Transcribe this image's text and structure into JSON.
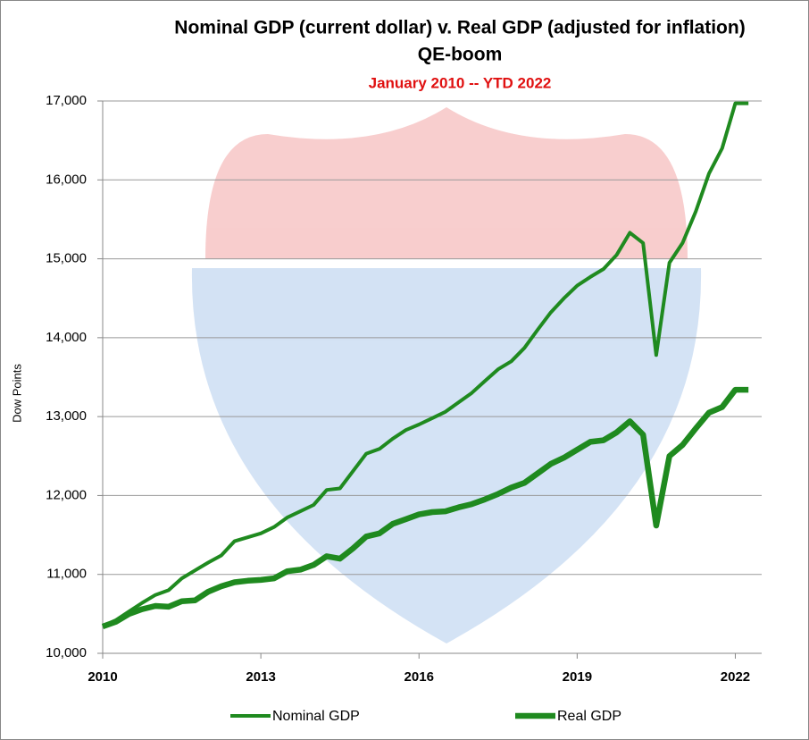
{
  "chart_data": {
    "type": "line",
    "title": "Nominal GDP (current dollar) v. Real GDP (adjusted for inflation)",
    "title2": "QE-boom",
    "subtitle": "January 2010 -- YTD 2022",
    "y_label": "Dow Points",
    "x": [
      2010,
      2010.25,
      2010.5,
      2010.75,
      2011,
      2011.25,
      2011.5,
      2011.75,
      2012,
      2012.25,
      2012.5,
      2012.75,
      2013,
      2013.25,
      2013.5,
      2013.75,
      2014,
      2014.25,
      2014.5,
      2014.75,
      2015,
      2015.25,
      2015.5,
      2015.75,
      2016,
      2016.25,
      2016.5,
      2016.75,
      2017,
      2017.25,
      2017.5,
      2017.75,
      2018,
      2018.25,
      2018.5,
      2018.75,
      2019,
      2019.25,
      2019.5,
      2019.75,
      2020,
      2020.25,
      2020.5,
      2020.75,
      2021,
      2021.25,
      2021.5,
      2021.75,
      2022,
      2022.25
    ],
    "series": [
      {
        "name": "Nominal GDP",
        "color": "#1f8a1f",
        "values": [
          10340,
          10420,
          10530,
          10640,
          10740,
          10800,
          10950,
          11050,
          11150,
          11240,
          11420,
          11470,
          11520,
          11600,
          11720,
          11800,
          11880,
          12070,
          12090,
          12310,
          12530,
          12590,
          12720,
          12830,
          12900,
          12980,
          13060,
          13180,
          13300,
          13450,
          13600,
          13700,
          13870,
          14100,
          14320,
          14500,
          14660,
          14770,
          14870,
          15050,
          15330,
          15200,
          13780,
          14950,
          15200,
          15600,
          16080,
          16400,
          16970,
          16970
        ]
      },
      {
        "name": "Real GDP",
        "color": "#1f8a1f",
        "values": [
          10340,
          10400,
          10500,
          10560,
          10600,
          10590,
          10660,
          10670,
          10780,
          10850,
          10900,
          10920,
          10930,
          10950,
          11040,
          11060,
          11120,
          11230,
          11200,
          11330,
          11480,
          11520,
          11640,
          11700,
          11760,
          11790,
          11800,
          11850,
          11890,
          11950,
          12020,
          12100,
          12160,
          12280,
          12400,
          12480,
          12580,
          12680,
          12700,
          12800,
          12940,
          12770,
          11620,
          12500,
          12640,
          12850,
          13050,
          13120,
          13340,
          13340
        ]
      }
    ],
    "xlim": [
      2010,
      2022.5
    ],
    "xticks": [
      2010,
      2013,
      2016,
      2019,
      2022
    ],
    "ylim": [
      10000,
      17000
    ],
    "yticks": [
      {
        "value": 10000,
        "label": "10,000"
      },
      {
        "value": 11000,
        "label": "11,000"
      },
      {
        "value": 12000,
        "label": "12,000"
      },
      {
        "value": 13000,
        "label": "13,000"
      },
      {
        "value": 14000,
        "label": "14,000"
      },
      {
        "value": 15000,
        "label": "15,000"
      },
      {
        "value": 16000,
        "label": "16,000"
      },
      {
        "value": 17000,
        "label": "17,000"
      }
    ],
    "grid": true,
    "legend": "bottom"
  }
}
